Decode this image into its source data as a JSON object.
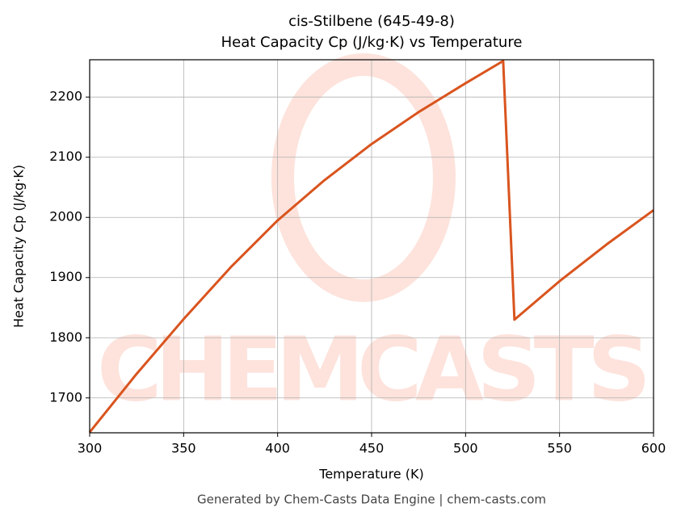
{
  "chart_data": {
    "type": "line",
    "title": "cis-Stilbene (645-49-8)",
    "subtitle": "Heat Capacity Cp (J/kg·K) vs Temperature",
    "x_label": "Temperature (K)",
    "y_label": "Heat Capacity Cp (J/kg·K)",
    "footer": "Generated by Chem-Casts Data Engine | chem-casts.com",
    "watermark": "CHEMCASTS",
    "x": [
      300,
      325,
      350,
      375,
      400,
      425,
      450,
      475,
      500,
      520,
      526,
      550,
      575,
      600
    ],
    "series": [
      {
        "name": "Cp",
        "color": "#d9541e",
        "values": [
          1643,
          1740,
          1831,
          1917,
          1995,
          2062,
          2122,
          2175,
          2223,
          2260,
          1830,
          1894,
          1955,
          2012
        ]
      }
    ],
    "xlim": [
      300,
      600
    ],
    "xticks": [
      300,
      350,
      400,
      450,
      500,
      550,
      600
    ],
    "ylim": [
      1642,
      2262
    ],
    "yticks": [
      1700,
      1800,
      1900,
      2000,
      2100,
      2200
    ],
    "grid": true
  }
}
